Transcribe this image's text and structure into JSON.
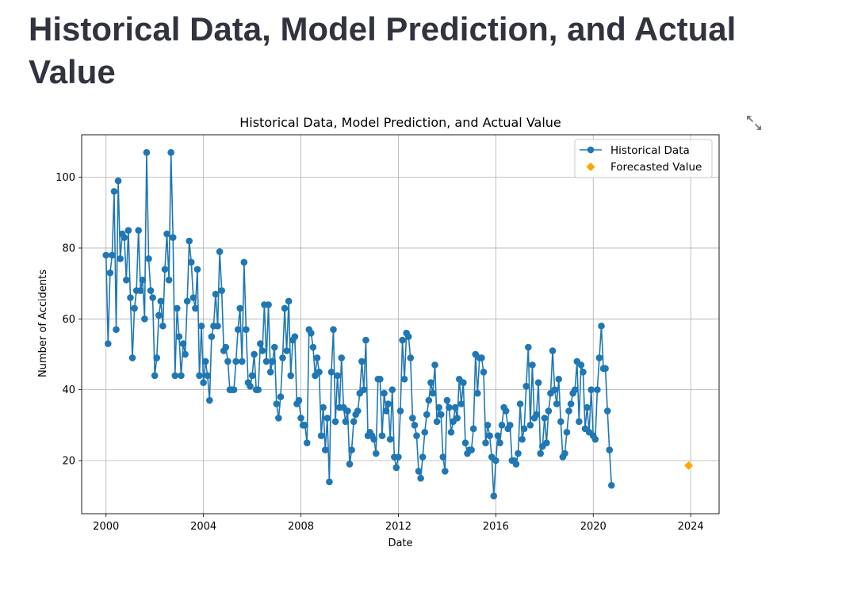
{
  "page": {
    "title": "Historical Data, Model Prediction, and Actual Value",
    "fullscreen_icon": "expand-arrows-icon"
  },
  "chart_data": {
    "type": "line",
    "title": "Historical Data, Model Prediction, and Actual Value",
    "xlabel": "Date",
    "ylabel": "Number of Accidents",
    "xlim": [
      "1999-01-01",
      "2025-03-01"
    ],
    "ylim": [
      5,
      112
    ],
    "x_ticks": [
      "2000",
      "2004",
      "2008",
      "2012",
      "2016",
      "2020",
      "2024"
    ],
    "y_ticks": [
      "20",
      "40",
      "60",
      "80",
      "100"
    ],
    "grid": true,
    "legend_position": "top-right",
    "colors": {
      "historical": "#1f77b4",
      "forecast": "#ffa500"
    },
    "series": [
      {
        "name": "Historical Data",
        "start": "2000-01",
        "frequency": "monthly",
        "marker": "circle",
        "values": [
          78,
          53,
          73,
          78,
          96,
          57,
          99,
          77,
          84,
          83,
          71,
          85,
          66,
          49,
          63,
          68,
          85,
          68,
          71,
          60,
          107,
          77,
          68,
          66,
          44,
          49,
          61,
          65,
          58,
          74,
          84,
          71,
          107,
          83,
          44,
          63,
          55,
          44,
          53,
          50,
          65,
          82,
          76,
          66,
          63,
          74,
          44,
          58,
          42,
          48,
          44,
          37,
          55,
          58,
          67,
          58,
          79,
          68,
          51,
          52,
          48,
          40,
          40,
          40,
          48,
          57,
          63,
          48,
          76,
          57,
          42,
          41,
          44,
          50,
          40,
          40,
          53,
          51,
          64,
          48,
          64,
          45,
          48,
          52,
          36,
          32,
          38,
          49,
          63,
          51,
          65,
          44,
          54,
          55,
          36,
          37,
          32,
          30,
          30,
          25,
          57,
          56,
          52,
          44,
          49,
          45,
          27,
          35,
          23,
          32,
          14,
          45,
          57,
          31,
          44,
          35,
          49,
          35,
          31,
          34,
          19,
          23,
          31,
          33,
          34,
          39,
          48,
          40,
          54,
          27,
          28,
          27,
          26,
          22,
          43,
          43,
          27,
          39,
          34,
          36,
          26,
          40,
          21,
          18,
          21,
          34,
          54,
          43,
          56,
          55,
          49,
          32,
          30,
          27,
          17,
          15,
          21,
          28,
          33,
          37,
          42,
          39,
          47,
          31,
          35,
          33,
          21,
          17,
          37,
          35,
          28,
          31,
          35,
          32,
          43,
          36,
          42,
          25,
          22,
          23,
          23,
          29,
          50,
          39,
          49,
          49,
          45,
          25,
          30,
          27,
          21,
          10,
          20,
          27,
          25,
          30,
          35,
          34,
          29,
          30,
          20,
          20,
          19,
          22,
          36,
          26,
          29,
          41,
          52,
          30,
          47,
          32,
          33,
          42,
          22,
          24,
          32,
          25,
          34,
          39,
          51,
          40,
          36,
          43,
          31,
          21,
          22,
          28,
          34,
          36,
          39,
          40,
          48,
          31,
          47,
          45,
          29,
          35,
          28,
          40,
          27,
          26,
          40,
          49,
          58,
          46,
          46,
          34,
          23,
          13
        ]
      },
      {
        "name": "Forecasted Value",
        "marker": "diamond",
        "points": [
          {
            "x": "2023-12",
            "y": 18.6
          }
        ]
      }
    ]
  }
}
